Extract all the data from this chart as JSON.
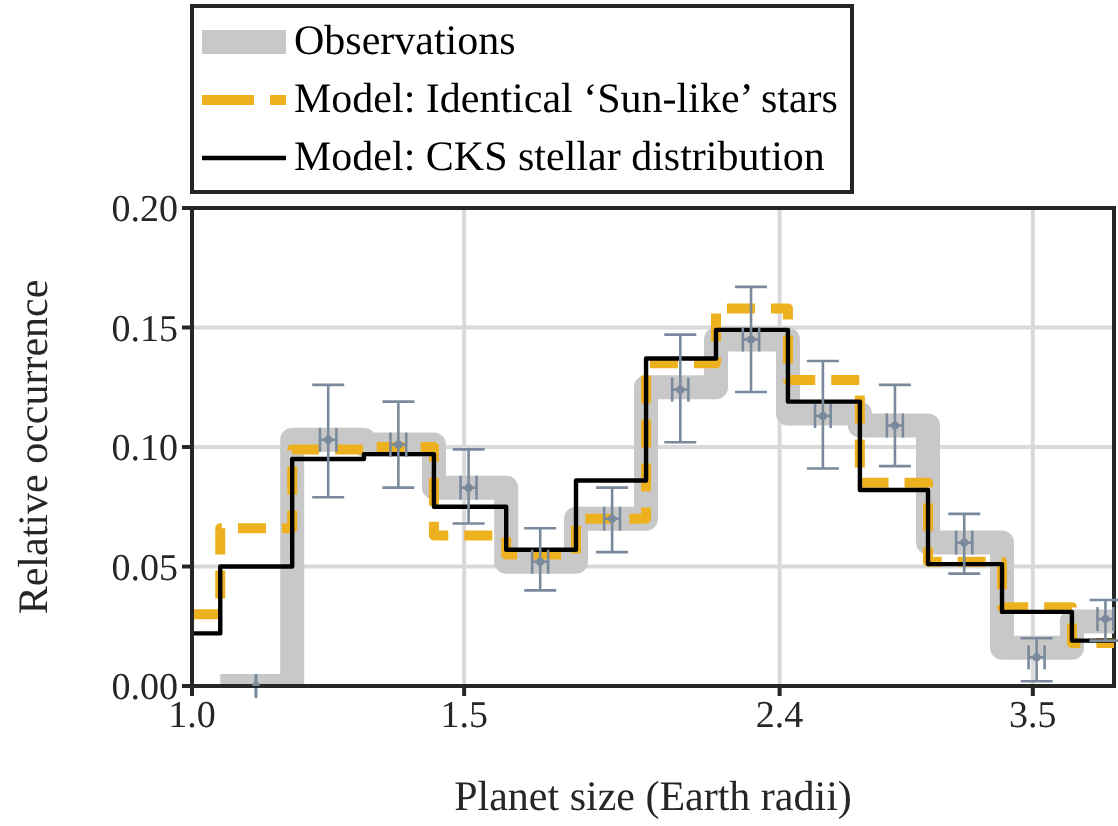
{
  "chart_data": {
    "type": "step",
    "xlabel": "Planet size (Earth radii)",
    "ylabel": "Relative occurrence",
    "x": [
      1.0,
      1.043,
      1.161,
      1.292,
      1.434,
      1.597,
      1.772,
      1.967,
      2.183,
      2.43,
      2.705,
      2.994,
      3.343,
      3.71
    ],
    "series": [
      {
        "name": "Observations",
        "color": "#c8c8c8",
        "values": [
          null,
          0.0,
          0.103,
          0.101,
          0.083,
          0.052,
          0.07,
          0.125,
          0.145,
          0.114,
          0.109,
          0.06,
          0.016,
          0.027
        ]
      },
      {
        "name": "Model: Identical ‘Sun-like’ stars",
        "color": "#edb120",
        "line_style": "dashed",
        "values": [
          0.03,
          0.066,
          0.099,
          0.1,
          0.063,
          0.055,
          0.07,
          0.135,
          0.158,
          0.128,
          0.085,
          0.052,
          0.033,
          0.018
        ]
      },
      {
        "name": "Model: CKS stellar distribution",
        "color": "#000000",
        "values": [
          0.022,
          0.05,
          0.095,
          0.097,
          0.075,
          0.057,
          0.086,
          0.137,
          0.149,
          0.119,
          0.082,
          0.051,
          0.031,
          0.019
        ]
      },
      {
        "type": "scatter",
        "marker": "circle",
        "color": "#7a8a9c",
        "x": [
          1.1,
          1.225,
          1.36,
          1.51,
          1.68,
          1.87,
          2.07,
          2.3,
          2.56,
          2.85,
          3.16,
          3.52,
          3.9
        ],
        "values": [
          0.0,
          0.103,
          0.101,
          0.083,
          0.052,
          0.07,
          0.124,
          0.145,
          0.113,
          0.109,
          0.06,
          0.012,
          0.028
        ],
        "errors": [
          null,
          [
            0.079,
            0.126
          ],
          [
            0.083,
            0.119
          ],
          [
            0.068,
            0.099
          ],
          [
            0.04,
            0.066
          ],
          [
            0.056,
            0.083
          ],
          [
            0.102,
            0.147
          ],
          [
            0.123,
            0.167
          ],
          [
            0.091,
            0.136
          ],
          [
            0.092,
            0.126
          ],
          [
            0.047,
            0.072
          ],
          [
            0.002,
            0.02
          ],
          [
            0.019,
            0.036
          ]
        ],
        "xerrors": [
          null,
          0.015,
          0.016,
          0.018,
          0.02,
          0.022,
          0.025,
          0.028,
          0.03,
          0.034,
          0.038,
          0.042,
          0.046
        ]
      }
    ],
    "xlim": [
      1.0,
      3.95
    ],
    "ylim": [
      0,
      0.2
    ],
    "xticks": [
      {
        "value": 1.0,
        "label": "1.0"
      },
      1.5,
      2.4,
      3.5
    ],
    "yticks": [
      {
        "value": 0,
        "label": "0.00"
      },
      {
        "value": 0.05,
        "label": "0.05"
      },
      {
        "value": 0.1,
        "label": "0.10"
      },
      {
        "value": 0.15,
        "label": "0.15"
      },
      {
        "value": 0.2,
        "label": "0.20"
      }
    ],
    "log": "x",
    "grid": true,
    "legend": "top"
  }
}
